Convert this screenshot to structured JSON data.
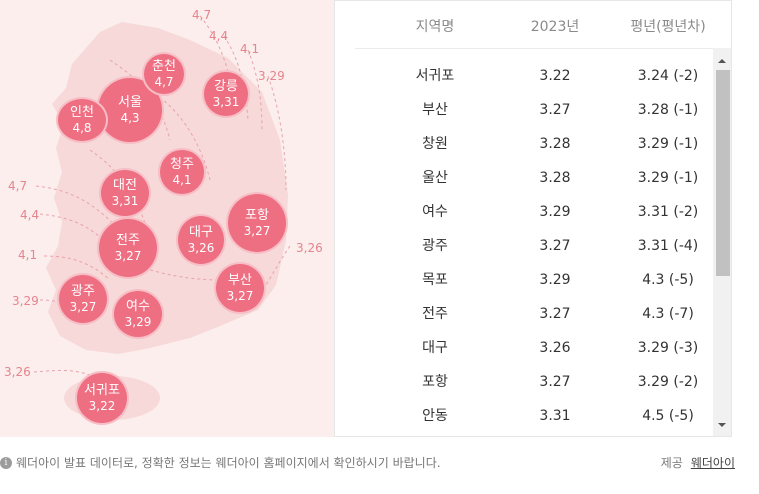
{
  "map": {
    "cities": [
      {
        "name": "서울",
        "value": "4,3"
      },
      {
        "name": "춘천",
        "value": "4,7"
      },
      {
        "name": "강릉",
        "value": "3,31"
      },
      {
        "name": "인천",
        "value": "4,8"
      },
      {
        "name": "청주",
        "value": "4,1"
      },
      {
        "name": "대전",
        "value": "3,31"
      },
      {
        "name": "포항",
        "value": "3,27"
      },
      {
        "name": "대구",
        "value": "3,26"
      },
      {
        "name": "전주",
        "value": "3,27"
      },
      {
        "name": "부산",
        "value": "3,27"
      },
      {
        "name": "광주",
        "value": "3,27"
      },
      {
        "name": "여수",
        "value": "3,29"
      },
      {
        "name": "서귀포",
        "value": "3,22"
      }
    ],
    "isolines": [
      "4,7",
      "4,4",
      "4,1",
      "3,29",
      "4,7",
      "4,4",
      "4,1",
      "3,29",
      "3,26",
      "3,26"
    ]
  },
  "table": {
    "headers": {
      "region": "지역명",
      "year": "2023년",
      "normal": "평년(평년차)"
    },
    "rows": [
      {
        "region": "서귀포",
        "year": "3.22",
        "normal": "3.24 (-2)"
      },
      {
        "region": "부산",
        "year": "3.27",
        "normal": "3.28 (-1)"
      },
      {
        "region": "창원",
        "year": "3.28",
        "normal": "3.29 (-1)"
      },
      {
        "region": "울산",
        "year": "3.28",
        "normal": "3.29 (-1)"
      },
      {
        "region": "여수",
        "year": "3.29",
        "normal": "3.31 (-2)"
      },
      {
        "region": "광주",
        "year": "3.27",
        "normal": "3.31 (-4)"
      },
      {
        "region": "목포",
        "year": "3.29",
        "normal": "4.3 (-5)"
      },
      {
        "region": "전주",
        "year": "3.27",
        "normal": "4.3 (-7)"
      },
      {
        "region": "대구",
        "year": "3.26",
        "normal": "3.29 (-3)"
      },
      {
        "region": "포항",
        "year": "3.27",
        "normal": "3.29 (-2)"
      },
      {
        "region": "안동",
        "year": "3.31",
        "normal": "4.5 (-5)"
      }
    ]
  },
  "footer": {
    "notice": "웨더아이 발표 데이터로, 정확한 정보는 웨더아이 홈페이지에서 확인하시기 바랍니다.",
    "provider_label": "제공",
    "provider_link": "웨더아이",
    "info_icon": "i"
  },
  "colors": {
    "bubble": "#ee6f82",
    "map_bg": "#fbeeec",
    "isoline": "#e6848f"
  },
  "icons": [
    "info-icon",
    "scroll-up-arrow-icon",
    "scroll-down-arrow-icon"
  ]
}
